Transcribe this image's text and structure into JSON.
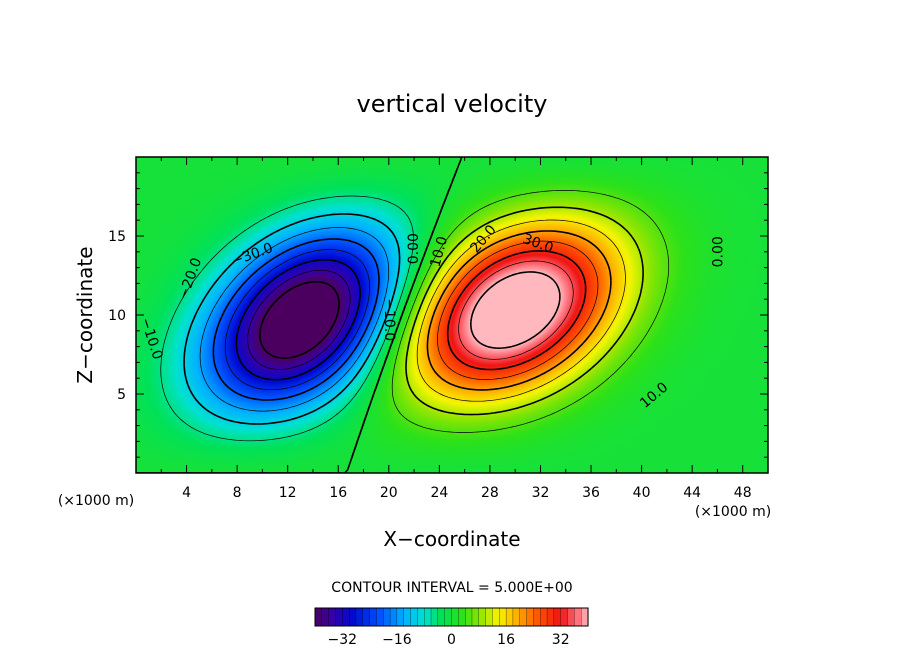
{
  "chart_data": {
    "type": "contour",
    "title": "vertical velocity",
    "xlabel": "X−coordinate",
    "ylabel": "Z−coordinate",
    "x_unit_label_left": "(×1000 m)",
    "x_unit_label_right": "(×1000 m)",
    "xlim": [
      0,
      50
    ],
    "ylim": [
      0,
      20
    ],
    "x_ticks": [
      4,
      8,
      12,
      16,
      20,
      24,
      28,
      32,
      36,
      40,
      44,
      48
    ],
    "x_tick_labels": [
      "4",
      "8",
      "12",
      "16",
      "20",
      "24",
      "28",
      "32",
      "36",
      "40",
      "44",
      "48"
    ],
    "y_ticks": [
      5,
      10,
      15
    ],
    "y_tick_labels": [
      "5",
      "10",
      "15"
    ],
    "contour_interval_text": "CONTOUR INTERVAL = 5.000E+00",
    "contour_interval": 5,
    "extremes": [
      {
        "sign": "negative",
        "x": 13,
        "z": 9.5,
        "value": -40
      },
      {
        "sign": "positive",
        "x": 30,
        "z": 10.5,
        "value": 40
      }
    ],
    "contour_labels": [
      {
        "text": "−10.0",
        "x": 1.2,
        "z": 8.5,
        "rotation": 72
      },
      {
        "text": "−20.0",
        "x": 4.3,
        "z": 12.3,
        "rotation": -70
      },
      {
        "text": "−30.0",
        "x": 9.2,
        "z": 13.8,
        "rotation": -20
      },
      {
        "text": "−10.0",
        "x": 20.0,
        "z": 9.7,
        "rotation": 90
      },
      {
        "text": "0.00",
        "x": 22.0,
        "z": 14.2,
        "rotation": -90
      },
      {
        "text": "10.0",
        "x": 24.0,
        "z": 14.0,
        "rotation": -75
      },
      {
        "text": "20.0",
        "x": 27.5,
        "z": 14.8,
        "rotation": -50
      },
      {
        "text": "30.0",
        "x": 31.8,
        "z": 14.5,
        "rotation": 20
      },
      {
        "text": "10.0",
        "x": 41.0,
        "z": 4.9,
        "rotation": -40
      },
      {
        "text": "0.00",
        "x": 46.1,
        "z": 14.0,
        "rotation": -90
      }
    ],
    "colorbar": {
      "min": -40,
      "max": 40,
      "ticks": [
        -32,
        -16,
        0,
        16,
        32
      ],
      "tick_labels": [
        "−32",
        "−16",
        "0",
        "16",
        "32"
      ]
    },
    "grid": false,
    "legend": "none"
  }
}
